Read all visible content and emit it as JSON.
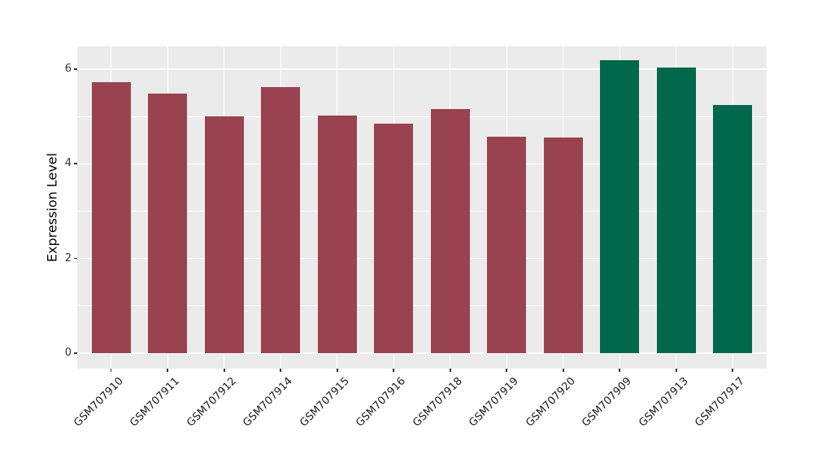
{
  "figure": {
    "background": "#FFFFFF",
    "panel_background": "#EBEBEB"
  },
  "chart_data": {
    "type": "bar",
    "title": "",
    "xlabel": "",
    "ylabel": "Expression Level",
    "categories": [
      "GSM707910",
      "GSM707911",
      "GSM707912",
      "GSM707914",
      "GSM707915",
      "GSM707916",
      "GSM707918",
      "GSM707919",
      "GSM707920",
      "GSM707909",
      "GSM707913",
      "GSM707917"
    ],
    "values": [
      5.72,
      5.48,
      5.0,
      5.62,
      5.01,
      4.85,
      5.16,
      4.57,
      4.55,
      6.18,
      6.04,
      5.25
    ],
    "groups": [
      "group1",
      "group1",
      "group1",
      "group1",
      "group1",
      "group1",
      "group1",
      "group1",
      "group1",
      "group2",
      "group2",
      "group2"
    ],
    "group_colors": {
      "group1": "#9A4350",
      "group2": "#00694B"
    },
    "y_ticks": [
      0,
      2,
      4,
      6
    ],
    "y_minor_ticks": [
      1,
      3,
      5
    ],
    "ylim": [
      -0.33,
      6.48
    ],
    "grid": true,
    "legend": "none",
    "grid_color": "#FFFFFF",
    "panel_bg": "#EBEBEB",
    "tick_color": "#333333",
    "text_color": "#1A1A1A",
    "bar_width_fraction": 0.69,
    "x_label_angle": 45
  }
}
